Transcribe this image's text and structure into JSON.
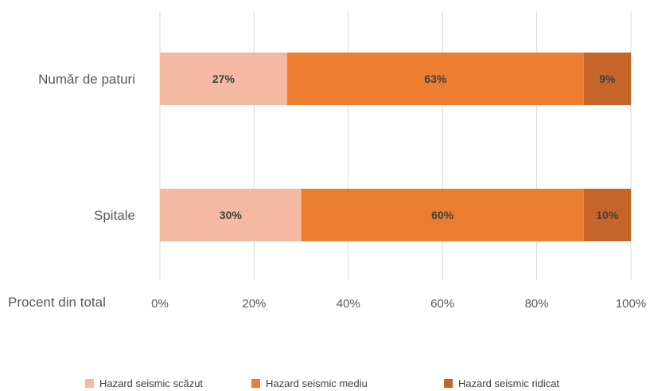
{
  "chart_data": {
    "type": "bar",
    "orientation": "horizontal",
    "stacked": true,
    "percent_stacked": true,
    "categories": [
      "Număr de paturi",
      "Spitale"
    ],
    "series": [
      {
        "name": "Hazard seismic scăzut",
        "values": [
          27,
          30
        ],
        "labels": [
          "27%",
          "30%"
        ],
        "color": "#f4b9a2"
      },
      {
        "name": "Hazard seismic mediu",
        "values": [
          63,
          60
        ],
        "labels": [
          "63%",
          "60%"
        ],
        "color": "#ed7d31"
      },
      {
        "name": "Hazard seismic ridicat",
        "values": [
          9,
          10
        ],
        "labels": [
          "9%",
          "10%"
        ],
        "color": "#c5652a"
      }
    ],
    "xlabel": "Procent din total",
    "xlim": [
      0,
      100
    ],
    "xticks": [
      "0%",
      "20%",
      "40%",
      "60%",
      "80%",
      "100%"
    ],
    "grid": "vertical",
    "legend": "bottom"
  }
}
